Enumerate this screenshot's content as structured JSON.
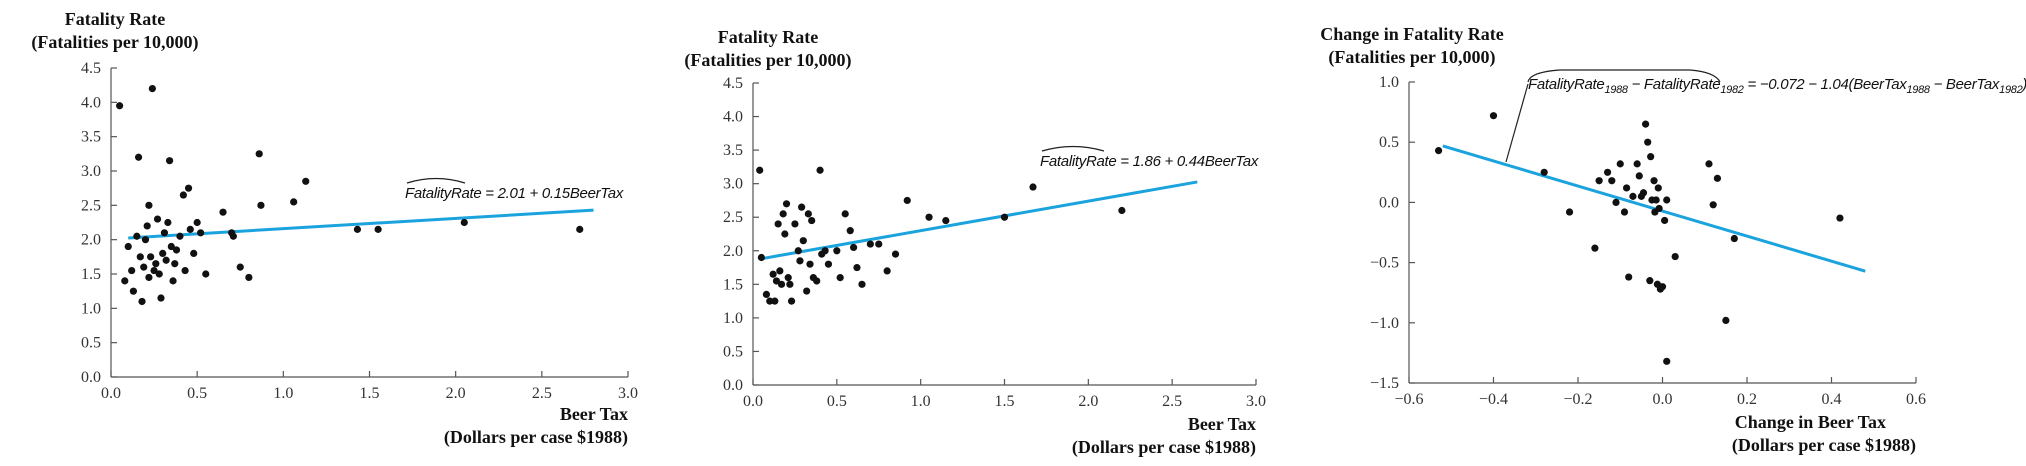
{
  "chart_data": [
    {
      "type": "scatter",
      "title": "",
      "ylabel_lines": [
        "Fatality Rate",
        "(Fatalities per 10,000)"
      ],
      "xlabel_lines": [
        "Beer Tax",
        "(Dollars per case $1988)"
      ],
      "xlim": [
        0.0,
        3.0
      ],
      "ylim": [
        0.0,
        4.5
      ],
      "xticks": [
        "0.0",
        "0.5",
        "1.0",
        "1.5",
        "2.0",
        "2.5",
        "3.0"
      ],
      "yticks": [
        "0.0",
        "0.5",
        "1.0",
        "1.5",
        "2.0",
        "2.5",
        "3.0",
        "3.5",
        "4.0",
        "4.5"
      ],
      "equation": {
        "hat": "FatalityRate",
        "rest": " = 2.01 + 0.15BeerTax"
      },
      "fit_line": {
        "intercept": 2.01,
        "slope": 0.15,
        "x_range": [
          0.1,
          2.8
        ]
      },
      "points": [
        [
          0.05,
          3.95
        ],
        [
          0.08,
          1.4
        ],
        [
          0.1,
          1.9
        ],
        [
          0.12,
          1.55
        ],
        [
          0.13,
          1.25
        ],
        [
          0.15,
          2.05
        ],
        [
          0.16,
          3.2
        ],
        [
          0.17,
          1.75
        ],
        [
          0.18,
          1.1
        ],
        [
          0.19,
          1.6
        ],
        [
          0.2,
          2.0
        ],
        [
          0.21,
          2.2
        ],
        [
          0.22,
          1.45
        ],
        [
          0.22,
          2.5
        ],
        [
          0.23,
          1.75
        ],
        [
          0.24,
          4.2
        ],
        [
          0.25,
          1.55
        ],
        [
          0.26,
          1.65
        ],
        [
          0.27,
          2.3
        ],
        [
          0.28,
          1.5
        ],
        [
          0.29,
          1.15
        ],
        [
          0.3,
          1.8
        ],
        [
          0.31,
          2.1
        ],
        [
          0.32,
          1.7
        ],
        [
          0.33,
          2.25
        ],
        [
          0.34,
          3.15
        ],
        [
          0.35,
          1.9
        ],
        [
          0.36,
          1.4
        ],
        [
          0.37,
          1.65
        ],
        [
          0.38,
          1.85
        ],
        [
          0.4,
          2.05
        ],
        [
          0.42,
          2.65
        ],
        [
          0.43,
          1.55
        ],
        [
          0.45,
          2.75
        ],
        [
          0.46,
          2.15
        ],
        [
          0.48,
          1.8
        ],
        [
          0.5,
          2.25
        ],
        [
          0.52,
          2.1
        ],
        [
          0.55,
          1.5
        ],
        [
          0.65,
          2.4
        ],
        [
          0.7,
          2.1
        ],
        [
          0.71,
          2.05
        ],
        [
          0.75,
          1.6
        ],
        [
          0.8,
          1.45
        ],
        [
          0.86,
          3.25
        ],
        [
          0.87,
          2.5
        ],
        [
          1.06,
          2.55
        ],
        [
          1.13,
          2.85
        ],
        [
          1.43,
          2.15
        ],
        [
          1.55,
          2.15
        ],
        [
          2.05,
          2.25
        ],
        [
          2.72,
          2.15
        ]
      ]
    },
    {
      "type": "scatter",
      "title": "",
      "ylabel_lines": [
        "Fatality Rate",
        "(Fatalities per 10,000)"
      ],
      "xlabel_lines": [
        "Beer Tax",
        "(Dollars per case $1988)"
      ],
      "xlim": [
        0.0,
        3.0
      ],
      "ylim": [
        0.0,
        4.5
      ],
      "xticks": [
        "0.0",
        "0.5",
        "1.0",
        "1.5",
        "2.0",
        "2.5",
        "3.0"
      ],
      "yticks": [
        "0.0",
        "0.5",
        "1.0",
        "1.5",
        "2.0",
        "2.5",
        "3.0",
        "3.5",
        "4.0",
        "4.5"
      ],
      "equation": {
        "hat": "FatalityRate",
        "rest": " = 1.86 + 0.44BeerTax"
      },
      "fit_line": {
        "intercept": 1.86,
        "slope": 0.44,
        "x_range": [
          0.05,
          2.65
        ]
      },
      "points": [
        [
          0.04,
          3.2
        ],
        [
          0.05,
          1.9
        ],
        [
          0.08,
          1.35
        ],
        [
          0.1,
          1.25
        ],
        [
          0.12,
          1.65
        ],
        [
          0.13,
          1.25
        ],
        [
          0.14,
          1.55
        ],
        [
          0.15,
          2.4
        ],
        [
          0.16,
          1.7
        ],
        [
          0.17,
          1.5
        ],
        [
          0.18,
          2.55
        ],
        [
          0.19,
          2.25
        ],
        [
          0.2,
          2.7
        ],
        [
          0.21,
          1.6
        ],
        [
          0.22,
          1.5
        ],
        [
          0.23,
          1.25
        ],
        [
          0.25,
          2.4
        ],
        [
          0.27,
          2.0
        ],
        [
          0.28,
          1.85
        ],
        [
          0.29,
          2.65
        ],
        [
          0.3,
          2.15
        ],
        [
          0.32,
          1.4
        ],
        [
          0.33,
          2.55
        ],
        [
          0.34,
          1.8
        ],
        [
          0.35,
          2.45
        ],
        [
          0.36,
          1.6
        ],
        [
          0.38,
          1.55
        ],
        [
          0.4,
          3.2
        ],
        [
          0.41,
          1.95
        ],
        [
          0.43,
          2.0
        ],
        [
          0.45,
          1.8
        ],
        [
          0.5,
          2.0
        ],
        [
          0.52,
          1.6
        ],
        [
          0.55,
          2.55
        ],
        [
          0.58,
          2.3
        ],
        [
          0.6,
          2.05
        ],
        [
          0.62,
          1.75
        ],
        [
          0.65,
          1.5
        ],
        [
          0.7,
          2.1
        ],
        [
          0.75,
          2.1
        ],
        [
          0.8,
          1.7
        ],
        [
          0.85,
          1.95
        ],
        [
          0.92,
          2.75
        ],
        [
          1.05,
          2.5
        ],
        [
          1.15,
          2.45
        ],
        [
          1.5,
          2.5
        ],
        [
          1.67,
          2.95
        ],
        [
          2.2,
          2.6
        ]
      ]
    },
    {
      "type": "scatter",
      "title": "",
      "ylabel_lines": [
        "Change in Fatality Rate",
        "(Fatalities per 10,000)"
      ],
      "xlabel_lines": [
        "Change in Beer Tax",
        "(Dollars per case $1988)"
      ],
      "xlim": [
        -0.6,
        0.6
      ],
      "ylim": [
        -1.5,
        1.0
      ],
      "xticks": [
        "−0.6",
        "−0.4",
        "−0.2",
        "0.0",
        "0.2",
        "0.4",
        "0.6"
      ],
      "yticks": [
        "−1.5",
        "−1.0",
        "−0.5",
        "0.0",
        "0.5",
        "1.0"
      ],
      "equation": {
        "hat": "FatalityRate",
        "hat_sub": "1988",
        "rest": [
          [
            "text",
            " − "
          ],
          [
            "text",
            "FatalityRate"
          ],
          [
            "sub",
            "1982"
          ],
          [
            "text",
            " = −0.072 − 1.04("
          ],
          [
            "text",
            "BeerTax"
          ],
          [
            "sub",
            "1988"
          ],
          [
            "text",
            " − "
          ],
          [
            "text",
            "BeerTax"
          ],
          [
            "sub",
            "1982"
          ],
          [
            "text",
            ")"
          ]
        ]
      },
      "fit_line": {
        "intercept": -0.072,
        "slope": -1.04,
        "x_range": [
          -0.52,
          0.48
        ]
      },
      "points": [
        [
          -0.53,
          0.43
        ],
        [
          -0.4,
          0.72
        ],
        [
          -0.28,
          0.25
        ],
        [
          -0.22,
          -0.08
        ],
        [
          -0.16,
          -0.38
        ],
        [
          -0.15,
          0.18
        ],
        [
          -0.13,
          0.25
        ],
        [
          -0.12,
          0.18
        ],
        [
          -0.11,
          0.0
        ],
        [
          -0.1,
          0.32
        ],
        [
          -0.09,
          -0.08
        ],
        [
          -0.085,
          0.12
        ],
        [
          -0.08,
          -0.62
        ],
        [
          -0.07,
          0.05
        ],
        [
          -0.06,
          0.32
        ],
        [
          -0.055,
          0.22
        ],
        [
          -0.05,
          0.05
        ],
        [
          -0.045,
          0.08
        ],
        [
          -0.04,
          0.65
        ],
        [
          -0.035,
          0.5
        ],
        [
          -0.03,
          -0.65
        ],
        [
          -0.028,
          0.38
        ],
        [
          -0.025,
          0.02
        ],
        [
          -0.02,
          0.18
        ],
        [
          -0.018,
          -0.08
        ],
        [
          -0.015,
          0.02
        ],
        [
          -0.012,
          -0.68
        ],
        [
          -0.01,
          0.12
        ],
        [
          -0.008,
          -0.05
        ],
        [
          -0.005,
          -0.72
        ],
        [
          0.0,
          -0.7
        ],
        [
          0.005,
          -0.15
        ],
        [
          0.01,
          0.02
        ],
        [
          0.01,
          -1.32
        ],
        [
          0.03,
          -0.45
        ],
        [
          0.11,
          0.32
        ],
        [
          0.12,
          -0.02
        ],
        [
          0.13,
          0.2
        ],
        [
          0.15,
          -0.98
        ],
        [
          0.17,
          -0.3
        ],
        [
          0.42,
          -0.13
        ]
      ]
    }
  ]
}
